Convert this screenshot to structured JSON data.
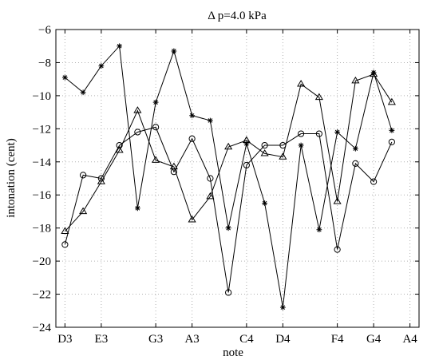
{
  "chart_data": {
    "type": "line",
    "title": "Δ p=4.0 kPa",
    "xlabel": "note",
    "ylabel": "intonation (cent)",
    "x_tick_labels": [
      "D3",
      "E3",
      "G3",
      "A3",
      "C4",
      "D4",
      "F4",
      "G4",
      "A4"
    ],
    "x_tick_positions": [
      0,
      2,
      5,
      7,
      10,
      12,
      15,
      17,
      19
    ],
    "xlim": [
      -0.5,
      19.5
    ],
    "ylim": [
      -24,
      -6
    ],
    "y_ticks": [
      -24,
      -22,
      -20,
      -18,
      -16,
      -14,
      -12,
      -10,
      -8,
      -6
    ],
    "grid": true,
    "series": [
      {
        "marker": "circle",
        "x": [
          0,
          1,
          2,
          3,
          4,
          5,
          6,
          7,
          8,
          9,
          10,
          11,
          12,
          13,
          14,
          15,
          16,
          17,
          18
        ],
        "values": [
          -19.0,
          -14.8,
          -15.0,
          -13.0,
          -12.2,
          -11.9,
          -14.6,
          -12.6,
          -15.0,
          -21.9,
          -14.2,
          -13.0,
          -13.0,
          -12.3,
          -12.3,
          -19.3,
          -14.1,
          -15.2,
          -12.8
        ]
      },
      {
        "marker": "triangle",
        "x": [
          0,
          1,
          2,
          3,
          4,
          5,
          6,
          7,
          8,
          9,
          10,
          11,
          12,
          13,
          14,
          15,
          16,
          17,
          18
        ],
        "values": [
          -18.2,
          -17.0,
          -15.2,
          -13.3,
          -10.9,
          -13.9,
          -14.3,
          -17.5,
          -16.1,
          -13.1,
          -12.7,
          -13.5,
          -13.7,
          -9.3,
          -10.1,
          -16.4,
          -9.1,
          -8.7,
          -10.4
        ]
      },
      {
        "marker": "asterisk",
        "x": [
          0,
          1,
          2,
          3,
          4,
          5,
          6,
          7,
          8,
          9,
          10,
          11,
          12,
          13,
          14,
          15,
          16,
          17,
          18
        ],
        "values": [
          -8.9,
          -9.8,
          -8.2,
          -7.0,
          -16.8,
          -10.4,
          -7.3,
          -11.2,
          -11.5,
          -18.0,
          -12.9,
          -16.5,
          -22.8,
          -13.0,
          -18.1,
          -12.2,
          -13.2,
          -8.6,
          -12.1
        ]
      }
    ]
  }
}
